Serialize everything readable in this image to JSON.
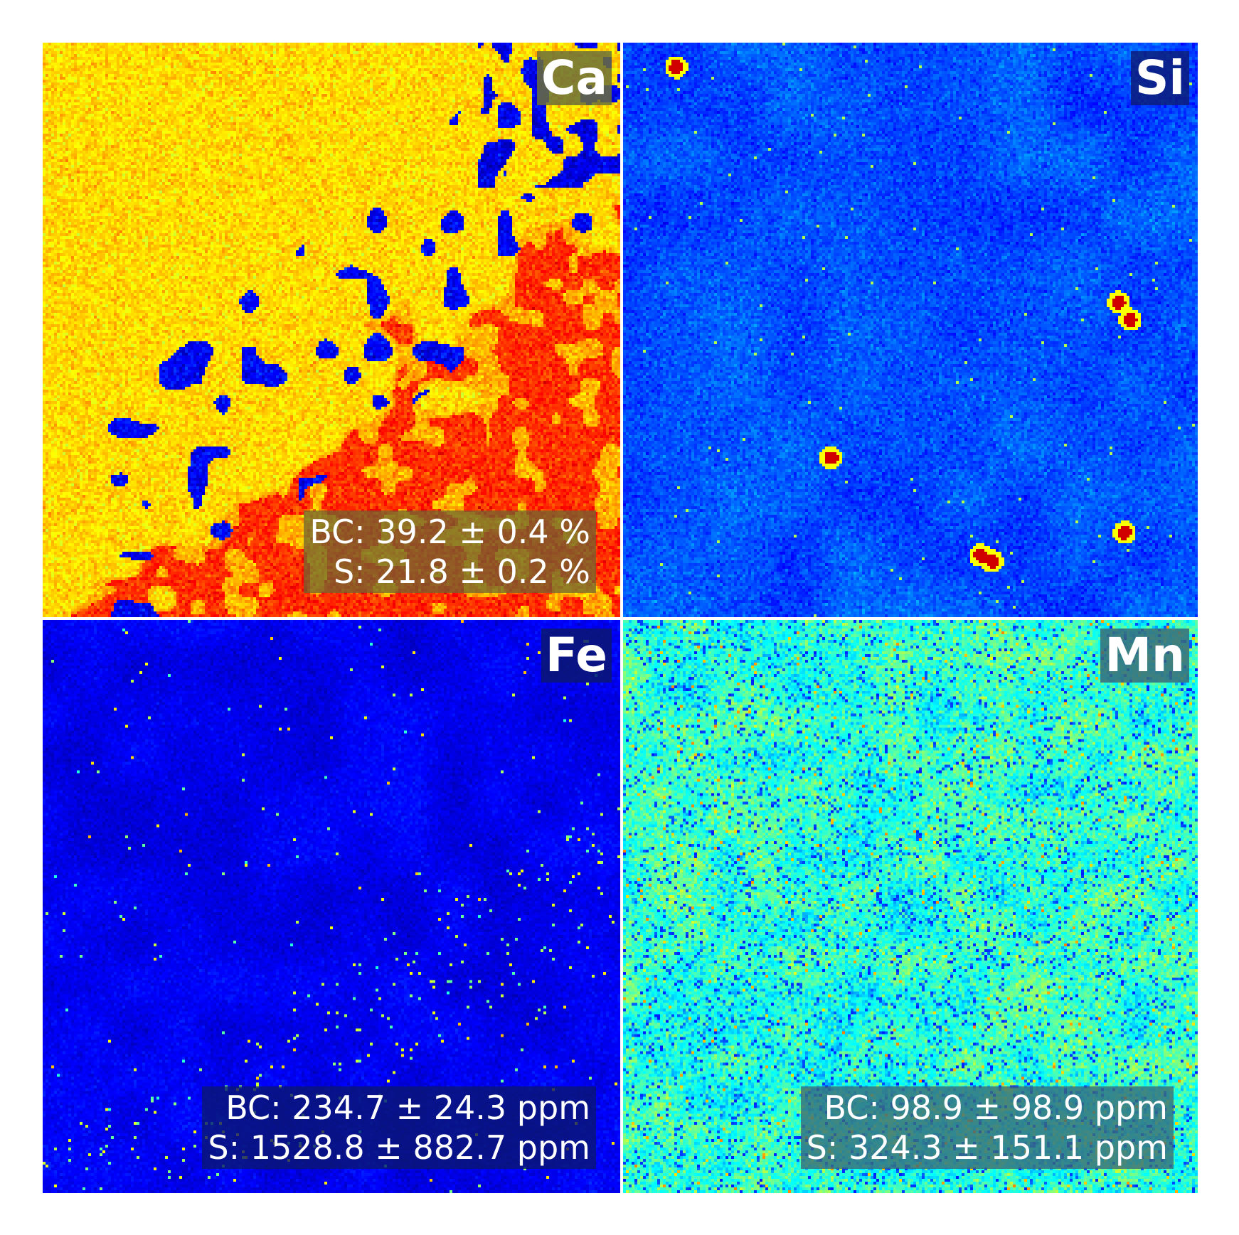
{
  "panels": [
    {
      "element": "Ca",
      "bc": "BC: 39.2 ± 0.4 %",
      "s": "S: 21.8 ± 0.2 %",
      "colormap": "jet",
      "label_bg": "#6b6f3a",
      "stats_bg": "#7a5a2a"
    },
    {
      "element": "Si",
      "colormap": "jet",
      "label_bg": "#0d1f7a"
    },
    {
      "element": "Fe",
      "bc": "BC: 234.7 ± 24.3 ppm",
      "s": "S: 1528.8 ± 882.7 ppm",
      "colormap": "jet",
      "label_bg": "#0a1670",
      "stats_bg": "#0a1670"
    },
    {
      "element": "Mn",
      "bc": "BC: 98.9 ± 98.9 ppm",
      "s": "S: 324.3 ± 151.1 ppm",
      "colormap": "jet",
      "label_bg": "#3a6a78",
      "stats_bg": "#3a6a78"
    }
  ]
}
